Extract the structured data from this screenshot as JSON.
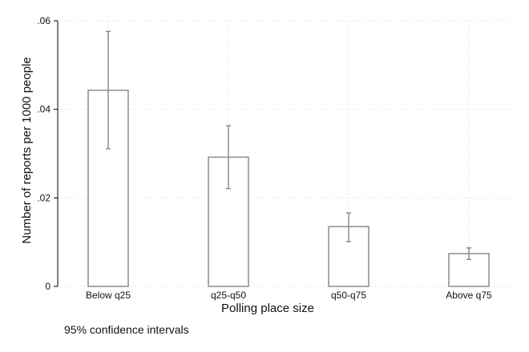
{
  "chart_data": {
    "type": "bar",
    "categories": [
      "Below q25",
      "q25-q50",
      "q50-q75",
      "Above q75"
    ],
    "values": [
      0.0443,
      0.0292,
      0.0135,
      0.0074
    ],
    "ci_lower": [
      0.0311,
      0.0221,
      0.0101,
      0.0061
    ],
    "ci_upper": [
      0.0576,
      0.0363,
      0.0166,
      0.0087
    ],
    "xlabel": "Polling place size",
    "ylabel": "Number of reports per 1000 people",
    "ylim": [
      0,
      0.06
    ],
    "yticks": [
      0,
      0.02,
      0.04,
      0.06
    ],
    "ytick_labels": [
      "0",
      ".02",
      ".04",
      ".06"
    ],
    "grid": true,
    "note": "95% confidence intervals",
    "colors": {
      "bar_stroke": "#8c8c8c",
      "bar_fill": "#ffffff",
      "error_bar": "#8c8c8c",
      "grid": "#d9d9d9"
    }
  }
}
